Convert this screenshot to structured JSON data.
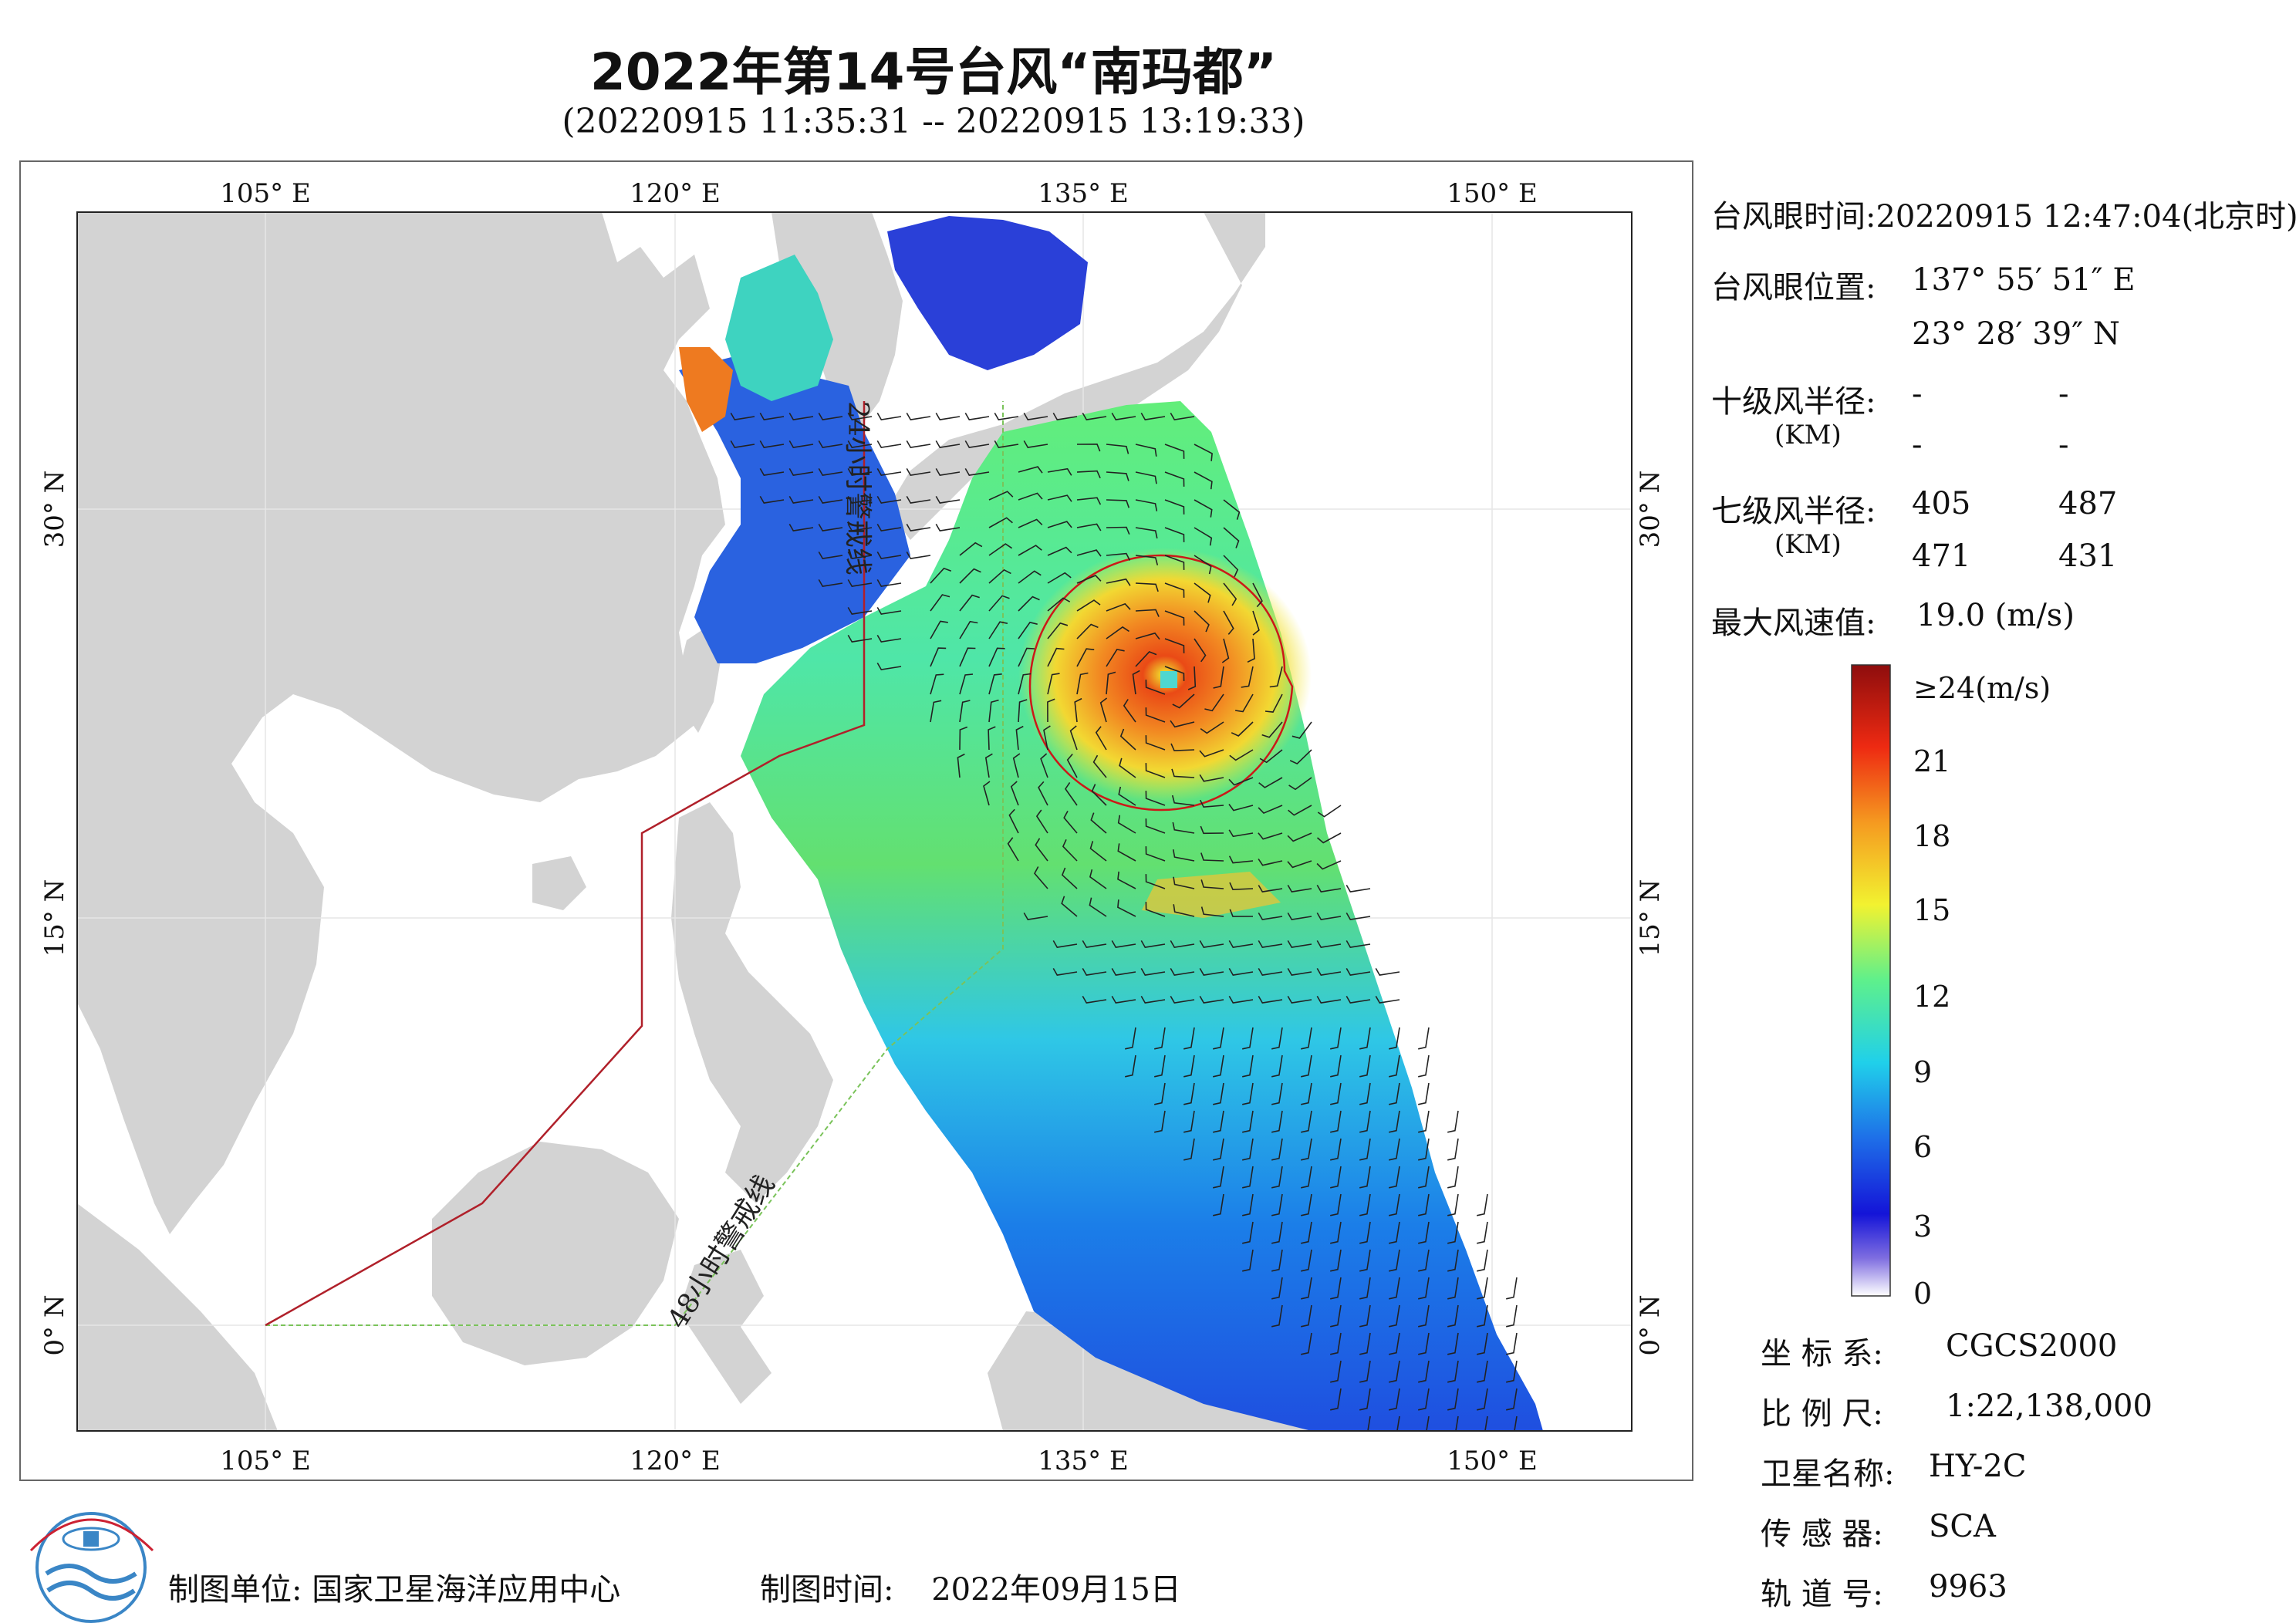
{
  "header": {
    "title": "2022年第14号台风“南玛都”",
    "subtitle": "(20220915 11:35:31 -- 20220915 13:19:33)"
  },
  "map": {
    "lon_ticks": [
      "105° E",
      "120° E",
      "135° E",
      "150° E"
    ],
    "lat_ticks": [
      "30° N",
      "15° N",
      "0° N"
    ],
    "line_24h": "24小时警戒线",
    "line_48h": "48小时警戒线",
    "colors": {
      "land": "#d3d3d3",
      "ocean": "#ffffff",
      "warning24": "#b0202a",
      "warning48": "#7ac35a"
    }
  },
  "info_panel": {
    "eye_time_label": "台风眼时间:",
    "eye_time_value": "20220915 12:47:04(北京时)",
    "eye_pos_label": "台风眼位置:",
    "eye_lon": "137° 55′ 51″ E",
    "eye_lat": "23° 28′ 39″ N",
    "r10_label": "十级风半径:",
    "r10_unit": "(KM)",
    "r10_values": [
      "-",
      "-",
      "-",
      "-"
    ],
    "r7_label": "七级风半径:",
    "r7_unit": "(KM)",
    "r7_values": [
      "405",
      "487",
      "471",
      "431"
    ],
    "max_wind_label": "最大风速值:",
    "max_wind_value": "19.0 (m/s)"
  },
  "colorbar": {
    "labels": [
      "≥24(m/s)",
      "21",
      "18",
      "15",
      "12",
      "9",
      "6",
      "3",
      "0"
    ]
  },
  "meta": {
    "crs_label": "坐 标 系:",
    "crs_value": "CGCS2000",
    "scale_label": "比 例 尺:",
    "scale_value": "1:22,138,000",
    "sat_label": "卫星名称:",
    "sat_value": "HY-2C",
    "sensor_label": "传 感 器:",
    "sensor_value": "SCA",
    "orbit_label": "轨 道 号:",
    "orbit_value": "9963"
  },
  "footer": {
    "unit_label": "制图单位:",
    "unit_value": "国家卫星海洋应用中心",
    "date_label": "制图时间:",
    "date_value": "2022年09月15日"
  }
}
